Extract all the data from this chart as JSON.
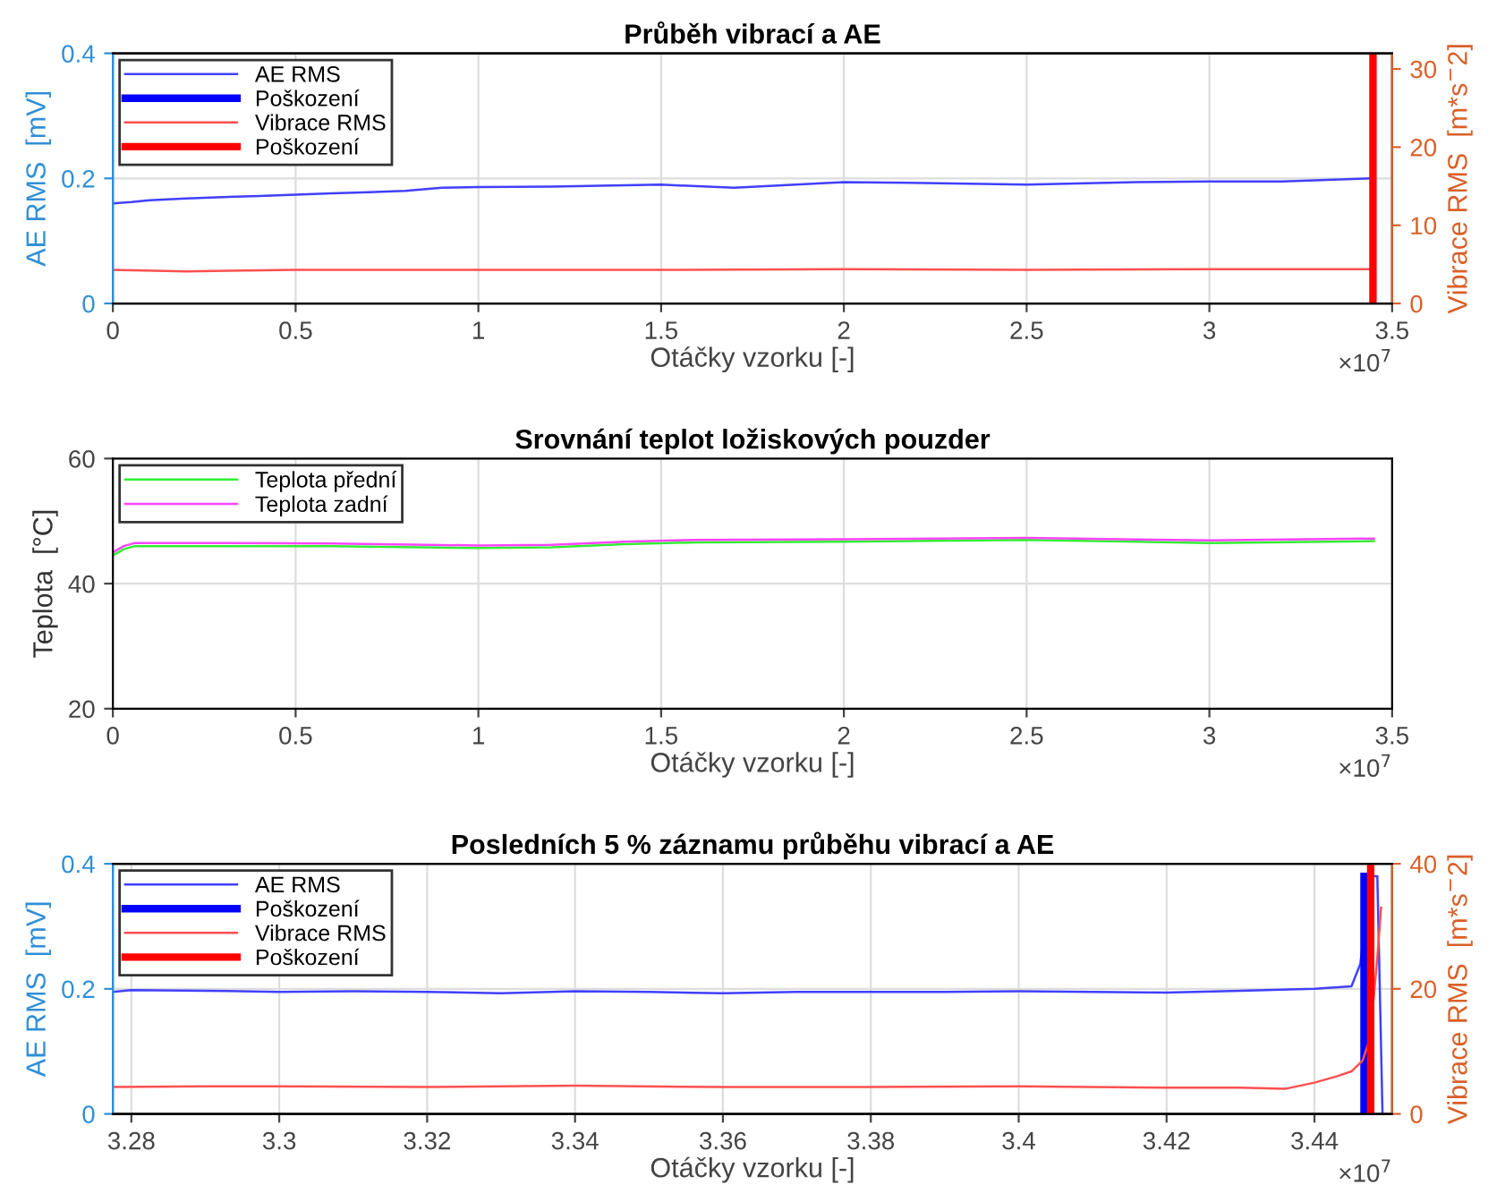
{
  "chart_data": [
    {
      "type": "line",
      "title": "Průběh vibrací a AE",
      "xlabel": "Otáčky vzorku [-]",
      "ylabel": "AE RMS  [mV]",
      "y2label": "Vibrace RMS  [m*s$^{−}$2]",
      "annotations": [
        "×10$^{7}$"
      ],
      "xlim": [
        0,
        3.5
      ],
      "xticks": [
        0,
        0.5,
        1,
        1.5,
        2,
        2.5,
        3,
        3.5
      ],
      "ylim": [
        0,
        0.4
      ],
      "yticks": [
        0,
        0.2,
        0.4
      ],
      "y2lim": [
        0,
        32
      ],
      "y2ticks": [
        0,
        10,
        20,
        30
      ],
      "grid": true,
      "legend": "top left",
      "series": [
        {
          "name": "AE RMS",
          "color": "#4040ff",
          "x": [
            0,
            0.05,
            0.1,
            0.2,
            0.3,
            0.4,
            0.5,
            0.6,
            0.7,
            0.8,
            0.9,
            1.0,
            1.2,
            1.5,
            1.7,
            2.0,
            2.3,
            2.5,
            2.8,
            3.0,
            3.2,
            3.44
          ],
          "values": [
            0.16,
            0.162,
            0.165,
            0.168,
            0.17,
            0.172,
            0.174,
            0.176,
            0.178,
            0.18,
            0.185,
            0.186,
            0.187,
            0.19,
            0.185,
            0.194,
            0.192,
            0.19,
            0.194,
            0.195,
            0.195,
            0.2
          ]
        },
        {
          "name": "Poškození",
          "color": "#0000ff",
          "x": [
            null,
            null
          ],
          "values": [
            null,
            null
          ]
        },
        {
          "name": "Vibrace RMS",
          "color": "#ff5050",
          "axis": "y2",
          "x": [
            0,
            0.2,
            0.5,
            1.0,
            1.5,
            2.0,
            2.5,
            3.0,
            3.44
          ],
          "values": [
            4.3,
            4.1,
            4.3,
            4.3,
            4.3,
            4.4,
            4.3,
            4.4,
            4.4
          ]
        },
        {
          "name": "Poškození",
          "color": "#ff0000",
          "axis": "y2",
          "x": [
            3.4476,
            3.4476
          ],
          "values": [
            0,
            32
          ]
        }
      ]
    },
    {
      "type": "line",
      "title": "Srovnání teplot ložiskových pouzder",
      "xlabel": "Otáčky vzorku [-]",
      "ylabel": "Teplota  [°C]",
      "annotations": [
        "×10$^{7}$"
      ],
      "xlim": [
        0,
        3.5
      ],
      "xticks": [
        0,
        0.5,
        1,
        1.5,
        2,
        2.5,
        3,
        3.5
      ],
      "ylim": [
        20,
        60
      ],
      "yticks": [
        20,
        40,
        60
      ],
      "grid": true,
      "legend": "top left",
      "series": [
        {
          "name": "Teplota přední",
          "color": "#33ee33",
          "x": [
            0,
            0.03,
            0.06,
            0.3,
            0.6,
            1.0,
            1.2,
            1.4,
            1.6,
            2.0,
            2.5,
            3.0,
            3.45
          ],
          "values": [
            44.5,
            45.5,
            46,
            46,
            46,
            45.7,
            45.8,
            46.3,
            46.6,
            46.7,
            47,
            46.5,
            46.8
          ]
        },
        {
          "name": "Teplota zadní",
          "color": "#ff44ff",
          "x": [
            0,
            0.03,
            0.06,
            0.3,
            0.6,
            1.0,
            1.2,
            1.4,
            1.6,
            2.0,
            2.5,
            3.0,
            3.45
          ],
          "values": [
            45,
            46,
            46.5,
            46.5,
            46.4,
            46.1,
            46.2,
            46.7,
            47,
            47.1,
            47.3,
            46.9,
            47.2
          ]
        }
      ]
    },
    {
      "type": "line",
      "title": "Posledních 5 % záznamu průběhu vibrací a AE",
      "xlabel": "Otáčky vzorku [-]",
      "ylabel": "AE RMS  [mV]",
      "y2label": "Vibrace RMS  [m*s$^{−}$2]",
      "annotations": [
        "×10$^{7}$"
      ],
      "xlim": [
        3.2775,
        3.4505
      ],
      "xticks": [
        3.28,
        3.3,
        3.32,
        3.34,
        3.36,
        3.38,
        3.4,
        3.42,
        3.44
      ],
      "ylim": [
        0,
        0.4
      ],
      "yticks": [
        0,
        0.2,
        0.4
      ],
      "y2lim": [
        0,
        40
      ],
      "y2ticks": [
        0,
        20,
        40
      ],
      "grid": true,
      "legend": "top left",
      "series": [
        {
          "name": "AE RMS",
          "color": "#4040ff",
          "x": [
            3.2775,
            3.28,
            3.29,
            3.3,
            3.31,
            3.32,
            3.33,
            3.34,
            3.35,
            3.36,
            3.37,
            3.38,
            3.39,
            3.4,
            3.41,
            3.42,
            3.43,
            3.44,
            3.445,
            3.4462,
            3.4468,
            3.4478,
            3.4485,
            3.4492
          ],
          "values": [
            0.195,
            0.198,
            0.197,
            0.195,
            0.196,
            0.195,
            0.193,
            0.196,
            0.195,
            0.193,
            0.195,
            0.195,
            0.195,
            0.196,
            0.195,
            0.194,
            0.197,
            0.2,
            0.204,
            0.24,
            0.3,
            0.38,
            0.38,
            0
          ]
        },
        {
          "name": "Poškození",
          "color": "#0000ff",
          "x": [
            3.4467,
            3.4467
          ],
          "values": [
            0,
            0.38
          ]
        },
        {
          "name": "Vibrace RMS",
          "color": "#ff5050",
          "axis": "y2",
          "x": [
            3.2775,
            3.29,
            3.3,
            3.32,
            3.34,
            3.36,
            3.38,
            3.4,
            3.42,
            3.43,
            3.436,
            3.44,
            3.443,
            3.445,
            3.4465,
            3.4475,
            3.4485,
            3.449
          ],
          "values": [
            4.3,
            4.4,
            4.4,
            4.3,
            4.5,
            4.3,
            4.3,
            4.4,
            4.2,
            4.2,
            4.0,
            5.0,
            6.0,
            6.8,
            8.5,
            12,
            25,
            33
          ]
        },
        {
          "name": "Poškození",
          "color": "#ff0000",
          "axis": "y2",
          "x": [
            3.4476,
            3.4476
          ],
          "values": [
            0,
            40
          ]
        }
      ]
    }
  ]
}
